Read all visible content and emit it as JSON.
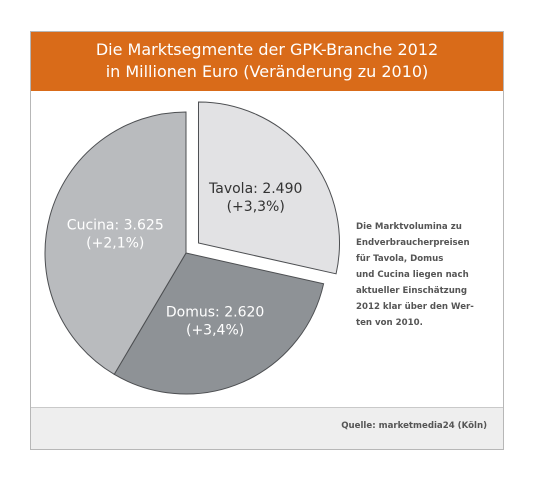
{
  "header": {
    "title_line1": "Die Marktsegmente der GPK-Branche 2012",
    "title_line2": "in Millionen Euro (Veränderung zu 2010)",
    "background": "#d96b19"
  },
  "chart_data": {
    "type": "pie",
    "title": "Die Marktsegmente der GPK-Branche 2012 in Millionen Euro (Veränderung zu 2010)",
    "slices": [
      {
        "name": "Tavola",
        "value": 2490,
        "value_label": "2.490",
        "change": "+3,3%",
        "color": "#e2e2e4",
        "exploded": true
      },
      {
        "name": "Domus",
        "value": 2620,
        "value_label": "2.620",
        "change": "+3,4%",
        "color": "#8e9296",
        "exploded": false
      },
      {
        "name": "Cucina",
        "value": 3625,
        "value_label": "3.625",
        "change": "+2,1%",
        "color": "#b9bbbe",
        "exploded": false
      }
    ]
  },
  "note": {
    "text": "Die Marktvolumina zu\nEndverbraucherpreisen\nfür Tavola, Domus\nund Cucina liegen nach\naktueller Einschätzung\n2012 klar über den Wer-\nten von 2010."
  },
  "footer": {
    "source": "Quelle: marketmedia24 (Köln)"
  }
}
